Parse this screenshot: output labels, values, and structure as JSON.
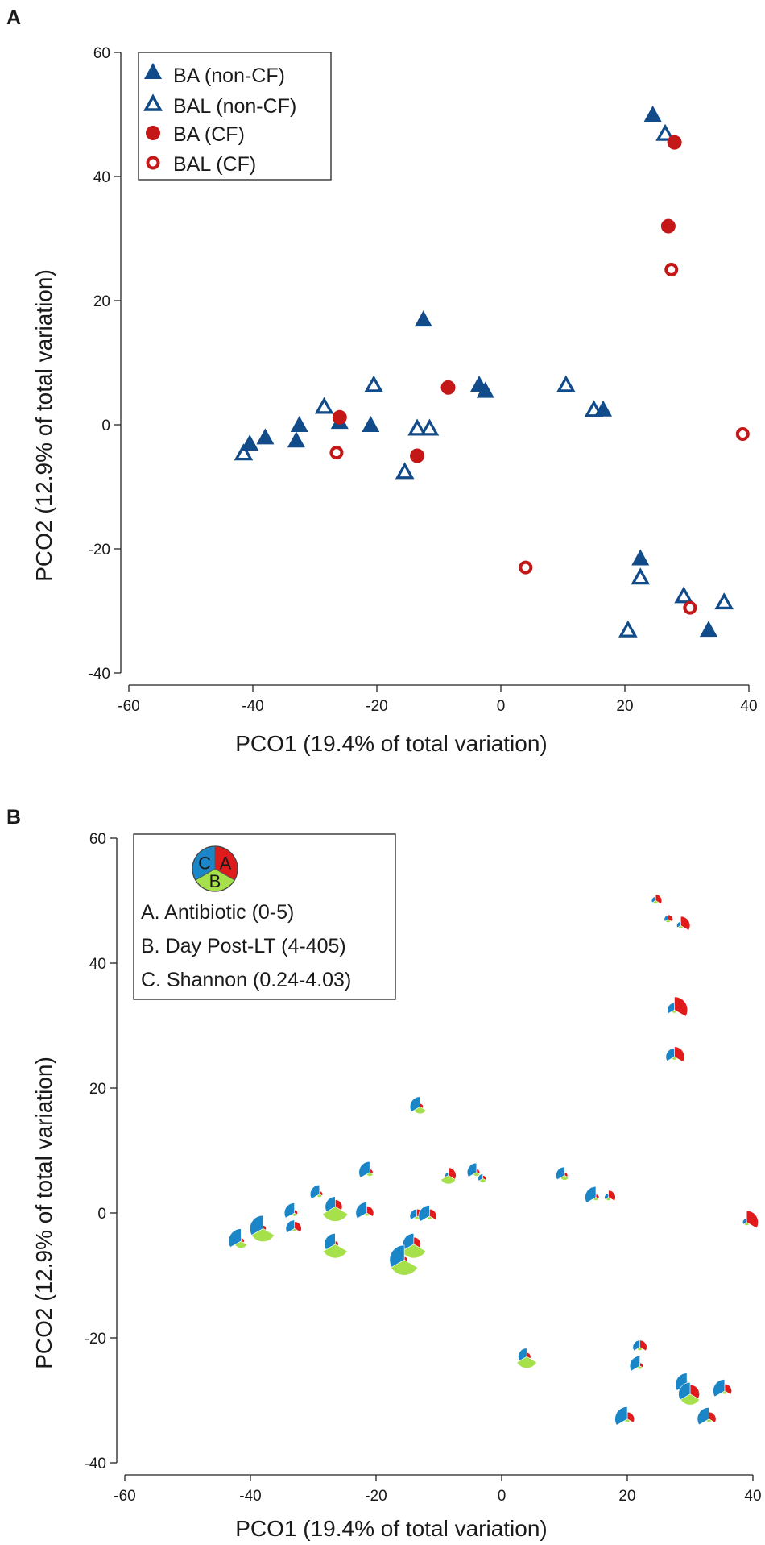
{
  "chart_data": [
    {
      "panel": "A",
      "type": "scatter",
      "xlabel": "PCO1 (19.4% of total variation)",
      "ylabel": "PCO2 (12.9% of total variation)",
      "xlim": [
        -60,
        40
      ],
      "ylim": [
        -40,
        60
      ],
      "xticks": [
        -60,
        -40,
        -20,
        0,
        20,
        40
      ],
      "yticks": [
        -40,
        -20,
        0,
        20,
        40,
        60
      ],
      "grid": false,
      "legend_position": "top-left",
      "colors": {
        "non_cf": "#114b89",
        "cf": "#c41818"
      },
      "series": [
        {
          "name": "BA (non-CF)",
          "marker": "triangle-filled",
          "color": "#114b89",
          "points": [
            [
              24.5,
              50
            ],
            [
              -12.5,
              17
            ],
            [
              -3.5,
              6.5
            ],
            [
              -2.5,
              5.5
            ],
            [
              16.5,
              2.5
            ],
            [
              -38,
              -2
            ],
            [
              -40.5,
              -3
            ],
            [
              -33,
              -2.5
            ],
            [
              -32.5,
              0
            ],
            [
              -26,
              0.5
            ],
            [
              -21,
              0
            ],
            [
              22.5,
              -21.5
            ],
            [
              33.5,
              -33
            ]
          ]
        },
        {
          "name": "BAL (non-CF)",
          "marker": "triangle-open",
          "color": "#114b89",
          "points": [
            [
              26.5,
              47
            ],
            [
              -20.5,
              6.5
            ],
            [
              10.5,
              6.5
            ],
            [
              15,
              2.5
            ],
            [
              -28.5,
              3
            ],
            [
              -41.5,
              -4.5
            ],
            [
              -13.5,
              -0.5
            ],
            [
              -11.5,
              -0.5
            ],
            [
              -15.5,
              -7.5
            ],
            [
              22.5,
              -24.5
            ],
            [
              29.5,
              -27.5
            ],
            [
              36,
              -28.5
            ],
            [
              20.5,
              -33
            ]
          ]
        },
        {
          "name": "BA (CF)",
          "marker": "circle-filled",
          "color": "#c41818",
          "points": [
            [
              28,
              45.5
            ],
            [
              27,
              32
            ],
            [
              -8.5,
              6
            ],
            [
              -26,
              1.2
            ],
            [
              -13.5,
              -5
            ]
          ]
        },
        {
          "name": "BAL (CF)",
          "marker": "circle-open",
          "color": "#c41818",
          "points": [
            [
              27.5,
              25
            ],
            [
              39,
              -1.5
            ],
            [
              -26.5,
              -4.5
            ],
            [
              4,
              -23
            ],
            [
              30.5,
              -29.5
            ]
          ]
        }
      ]
    },
    {
      "panel": "B",
      "type": "scatter",
      "marker_type": "segmented-pie",
      "xlabel": "PCO1 (19.4% of total variation)",
      "ylabel": "PCO2 (12.9% of total variation)",
      "xlim": [
        -60,
        40
      ],
      "ylim": [
        -40,
        60
      ],
      "xticks": [
        -60,
        -40,
        -20,
        0,
        20,
        40
      ],
      "yticks": [
        -40,
        -20,
        0,
        20,
        40,
        60
      ],
      "grid": false,
      "legend_position": "top-left",
      "colors": {
        "A": "#e01b1b",
        "B": "#a6e04a",
        "C": "#1a86c8"
      },
      "legend": {
        "key_labels": [
          "A",
          "B",
          "C"
        ],
        "items": [
          "A. Antibiotic (0-5)",
          "B. Day Post-LT (4-405)",
          "C. Shannon (0.24-4.03)"
        ]
      },
      "points_note": "each point: [PCO1, PCO2, A, B, C] with A/B/C as relative wedge sizes 0-1",
      "points": [
        [
          24.5,
          50,
          0.25,
          0.05,
          0.1
        ],
        [
          26.5,
          47,
          0.15,
          0.05,
          0.1
        ],
        [
          28.5,
          46,
          0.45,
          0.05,
          0.1
        ],
        [
          27.5,
          32.5,
          0.7,
          0.05,
          0.3
        ],
        [
          27.5,
          25,
          0.5,
          0.05,
          0.4
        ],
        [
          -13,
          17,
          0.05,
          0.3,
          0.5
        ],
        [
          -21,
          6.5,
          0.05,
          0.1,
          0.55
        ],
        [
          -8.5,
          6,
          0.35,
          0.4,
          0.05
        ],
        [
          -4,
          6.5,
          0.05,
          0.1,
          0.45
        ],
        [
          -3,
          5.5,
          0.05,
          0.1,
          0.15
        ],
        [
          10,
          6,
          0.05,
          0.15,
          0.4
        ],
        [
          15,
          2.5,
          0.05,
          0.05,
          0.55
        ],
        [
          17,
          2.5,
          0.3,
          0.05,
          0.1
        ],
        [
          -29,
          3,
          0.05,
          0.05,
          0.45
        ],
        [
          -26.5,
          1,
          0.3,
          0.8,
          0.5
        ],
        [
          -21.5,
          0,
          0.3,
          0.05,
          0.55
        ],
        [
          -33,
          0,
          0.05,
          0.05,
          0.5
        ],
        [
          -33,
          -2.5,
          0.3,
          0.05,
          0.4
        ],
        [
          -13.5,
          -0.5,
          0.3,
          0.05,
          0.3
        ],
        [
          -11.5,
          -0.5,
          0.3,
          0.05,
          0.55
        ],
        [
          -14,
          -5,
          0.3,
          0.75,
          0.55
        ],
        [
          -15.5,
          -7.5,
          0.05,
          0.85,
          0.8
        ],
        [
          -26.5,
          -5,
          0.05,
          0.75,
          0.55
        ],
        [
          -38,
          -2.5,
          0.05,
          0.7,
          0.7
        ],
        [
          -41.5,
          -4.5,
          0.05,
          0.3,
          0.65
        ],
        [
          39,
          -1.5,
          0.6,
          0.05,
          0.1
        ],
        [
          4,
          -23,
          0.1,
          0.6,
          0.4
        ],
        [
          22,
          -21.5,
          0.3,
          0.05,
          0.3
        ],
        [
          22,
          -24.5,
          0.05,
          0.05,
          0.5
        ],
        [
          29.5,
          -27.5,
          0.05,
          0.05,
          0.6
        ],
        [
          30,
          -29,
          0.45,
          0.55,
          0.6
        ],
        [
          35.5,
          -28.5,
          0.3,
          0.05,
          0.6
        ],
        [
          20,
          -33,
          0.3,
          0.05,
          0.65
        ],
        [
          33,
          -33,
          0.3,
          0.05,
          0.6
        ]
      ]
    }
  ]
}
